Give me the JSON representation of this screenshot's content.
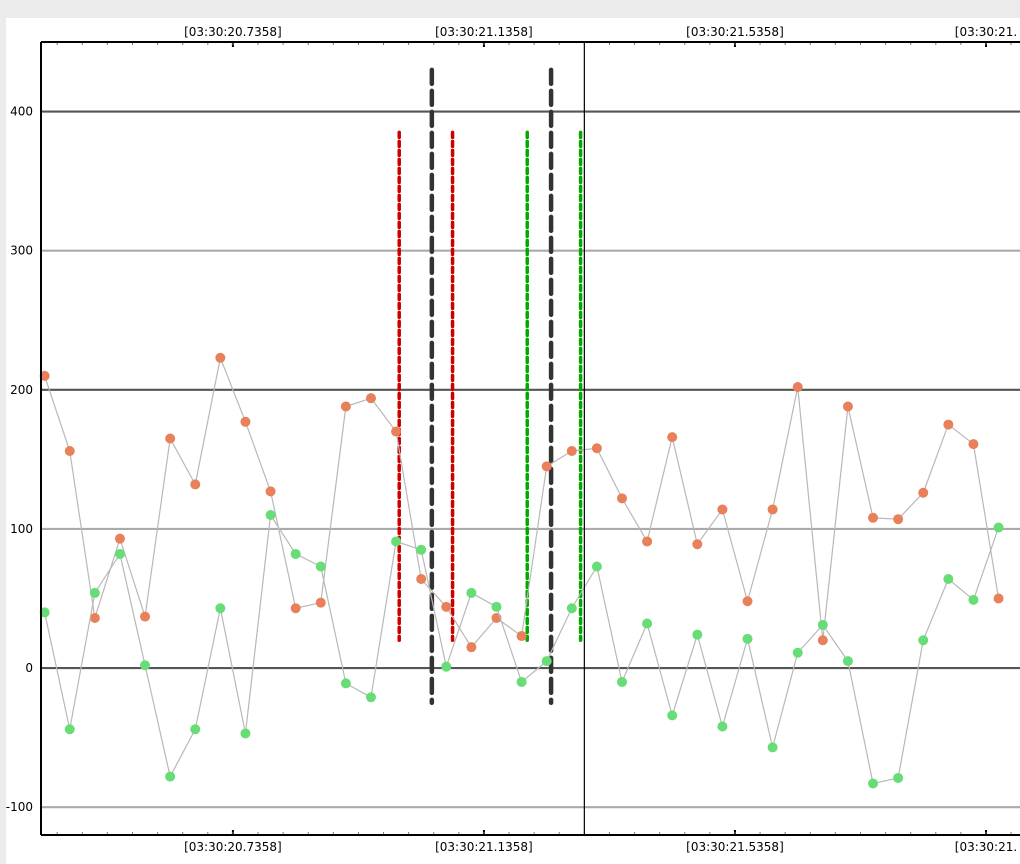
{
  "chart_data": {
    "type": "scatter",
    "title": "",
    "xlabel": "",
    "ylabel": "",
    "x_tick_labels": [
      "[03:30:20.7358]",
      "[03:30:21.1358]",
      "[03:30:21.5358]",
      "[03:30:21."
    ],
    "x_tick_values": [
      20.7358,
      21.1358,
      21.5358,
      21.9358
    ],
    "y_ticks": [
      -100,
      0,
      100,
      200,
      300,
      400
    ],
    "ylim": [
      -120,
      450
    ],
    "xlim": [
      20.43,
      21.99
    ],
    "grid": true,
    "cursor_x": 21.2958,
    "series": [
      {
        "color": "#e8805a",
        "x": [
          20.4358,
          20.4758,
          20.5158,
          20.5558,
          20.5958,
          20.6358,
          20.6758,
          20.7158,
          20.7558,
          20.7958,
          20.8358,
          20.8758,
          20.9158,
          20.9558,
          20.9958,
          21.0358,
          21.0758,
          21.1158,
          21.1558,
          21.1958,
          21.2358,
          21.2758,
          21.3158,
          21.3558,
          21.3958,
          21.4358,
          21.4758,
          21.5158,
          21.5558,
          21.5958,
          21.6358,
          21.6758,
          21.7158,
          21.7558,
          21.7958,
          21.8358,
          21.8758,
          21.9158,
          21.9558
        ],
        "y": [
          210,
          156,
          36,
          93,
          37,
          165,
          132,
          223,
          177,
          127,
          43,
          47,
          188,
          194,
          170,
          64,
          44,
          15,
          36,
          23,
          145,
          156,
          158,
          122,
          91,
          166,
          89,
          114,
          48,
          114,
          202,
          20,
          188,
          108,
          107,
          126,
          175,
          161,
          50
        ]
      },
      {
        "color": "#66dd77",
        "x": [
          20.4358,
          20.4758,
          20.5158,
          20.5558,
          20.5958,
          20.6358,
          20.6758,
          20.7158,
          20.7558,
          20.7958,
          20.8358,
          20.8758,
          20.9158,
          20.9558,
          20.9958,
          21.0358,
          21.0758,
          21.1158,
          21.1558,
          21.1958,
          21.2358,
          21.2758,
          21.3158,
          21.3558,
          21.3958,
          21.4358,
          21.4758,
          21.5158,
          21.5558,
          21.5958,
          21.6358,
          21.6758,
          21.7158,
          21.7558,
          21.7958,
          21.8358,
          21.8758,
          21.9158,
          21.9558
        ],
        "y": [
          40,
          -44,
          54,
          82,
          2,
          -78,
          -44,
          43,
          -47,
          110,
          82,
          73,
          -11,
          -21,
          91,
          85,
          1,
          54,
          44,
          -10,
          5,
          43,
          73,
          -10,
          32,
          -34,
          24,
          -42,
          21,
          -57,
          11,
          31,
          5,
          -83,
          -79,
          20,
          64,
          49,
          101
        ]
      }
    ],
    "markers": [
      {
        "x": 21.0008,
        "y_from": 20,
        "y_to": 385,
        "color": "#cc0000",
        "style": "dotted"
      },
      {
        "x": 21.0858,
        "y_from": 20,
        "y_to": 385,
        "color": "#cc0000",
        "style": "dotted"
      },
      {
        "x": 21.2048,
        "y_from": 20,
        "y_to": 385,
        "color": "#00aa00",
        "style": "dotted"
      },
      {
        "x": 21.2898,
        "y_from": 20,
        "y_to": 385,
        "color": "#00aa00",
        "style": "dotted"
      },
      {
        "x": 21.0528,
        "y_from": -25,
        "y_to": 430,
        "color": "#333333",
        "style": "dashed"
      },
      {
        "x": 21.2428,
        "y_from": -25,
        "y_to": 430,
        "color": "#333333",
        "style": "dashed"
      }
    ]
  }
}
